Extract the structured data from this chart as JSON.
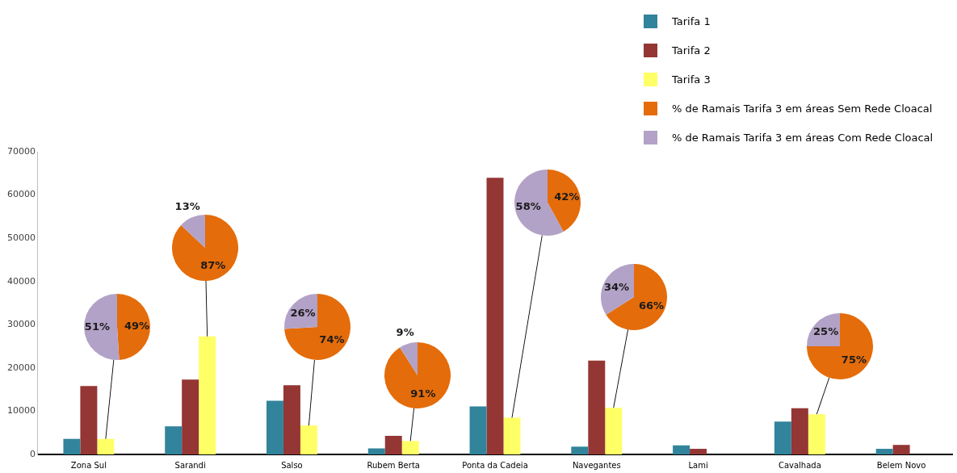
{
  "chart_data": [
    {
      "type": "bar",
      "categories": [
        "Zona Sul",
        "Sarandi",
        "Salso",
        "Rubem Berta",
        "Ponta da Cadeia",
        "Navegantes",
        "Lami",
        "Cavalhada",
        "Belem Novo"
      ],
      "series": [
        {
          "name": "Tarifa 1",
          "color": "#31849b",
          "values": [
            3600,
            6500,
            12400,
            1400,
            11100,
            1800,
            2100,
            7600,
            1300
          ]
        },
        {
          "name": "Tarifa 2",
          "color": "#943634",
          "values": [
            15800,
            17300,
            16000,
            4300,
            64000,
            21700,
            1300,
            10700,
            2200
          ]
        },
        {
          "name": "Tarifa 3",
          "color": "#ffff66",
          "values": [
            3600,
            27300,
            6700,
            3100,
            8500,
            10800,
            0,
            9300,
            0
          ]
        }
      ],
      "ylim": [
        0,
        70000
      ],
      "yticks": [
        0,
        10000,
        20000,
        30000,
        40000,
        50000,
        60000,
        70000
      ],
      "grid": false,
      "legend": "top right"
    },
    {
      "type": "pie",
      "categories": [
        "% de Ramais Tarifa 3 em áreas Sem Rede Cloacal",
        "% de Ramais Tarifa 3 em áreas Com Rede Cloacal"
      ],
      "values": [
        49,
        51
      ],
      "colors": [
        "#e46c0a",
        "#b3a2c7"
      ],
      "value_labels": [
        "49%",
        "51%"
      ],
      "legend": "top right"
    },
    {
      "type": "pie",
      "categories": [
        null,
        null
      ],
      "values": [
        87,
        13
      ],
      "colors": [
        "#e46c0a",
        "#b3a2c7"
      ],
      "value_labels": [
        "87%",
        "13%"
      ]
    },
    {
      "type": "pie",
      "categories": [
        null,
        null
      ],
      "values": [
        74,
        26
      ],
      "colors": [
        "#e46c0a",
        "#b3a2c7"
      ],
      "value_labels": [
        "74%",
        "26%"
      ]
    },
    {
      "type": "pie",
      "categories": [
        null,
        null
      ],
      "values": [
        91,
        9
      ],
      "colors": [
        "#e46c0a",
        "#b3a2c7"
      ],
      "value_labels": [
        "91%",
        "9%"
      ]
    },
    {
      "type": "pie",
      "categories": [
        null,
        null
      ],
      "values": [
        42,
        58
      ],
      "colors": [
        "#e46c0a",
        "#b3a2c7"
      ],
      "value_labels": [
        "42%",
        "58%"
      ]
    },
    {
      "type": "pie",
      "categories": [
        null,
        null
      ],
      "values": [
        66,
        34
      ],
      "colors": [
        "#e46c0a",
        "#b3a2c7"
      ],
      "value_labels": [
        "66%",
        "34%"
      ]
    },
    {
      "type": "pie",
      "categories": [
        null,
        null
      ],
      "values": [
        75,
        25
      ],
      "colors": [
        "#e46c0a",
        "#b3a2c7"
      ],
      "value_labels": [
        "75%",
        "25%"
      ]
    }
  ]
}
